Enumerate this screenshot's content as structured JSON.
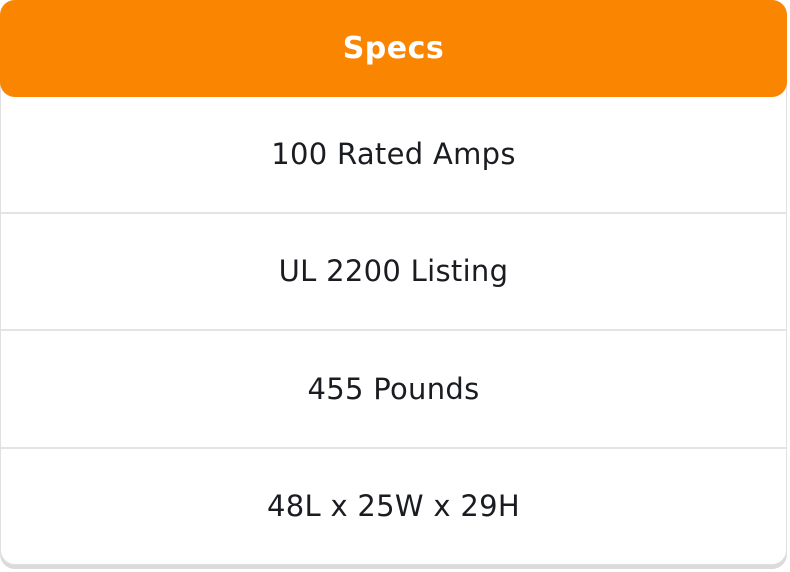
{
  "specs_table": {
    "header": "Specs",
    "rows": [
      {
        "label": "100 Rated Amps"
      },
      {
        "label": "UL 2200 Listing"
      },
      {
        "label": "455 Pounds"
      },
      {
        "label": "48L x 25W x 29H"
      }
    ]
  },
  "colors": {
    "header_bg": "#fa8500",
    "header_text": "#ffffff",
    "row_text": "#1b1c21",
    "divider": "#e4e4e6",
    "card_border": "#e0e0e0",
    "card_shadow": "#dbdbdb",
    "row_bg": "#ffffff"
  }
}
